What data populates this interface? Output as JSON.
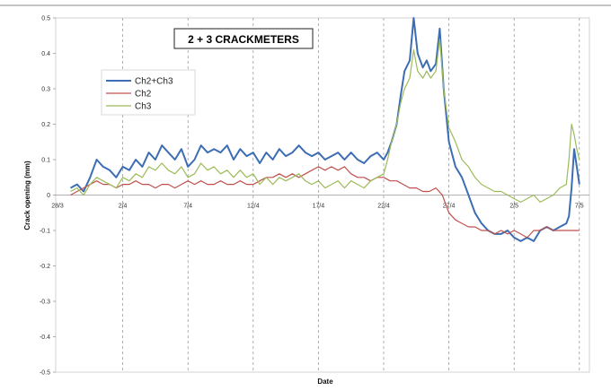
{
  "chart_data": {
    "type": "line",
    "title": "2 + 3 CRACKMETERS",
    "xlabel": "Date",
    "ylabel": "Crack opening (mm)",
    "ylim": [
      -0.5,
      0.5
    ],
    "yticks": [
      0.5,
      0.4,
      0.3,
      0.2,
      0.1,
      0,
      -0.1,
      -0.2,
      -0.3,
      -0.4,
      -0.5
    ],
    "xticks": [
      "28/3",
      "2/4",
      "7/4",
      "12/4",
      "17/4",
      "22/4",
      "27/4",
      "2/5",
      "7/5"
    ],
    "grid": "vertical-dashed",
    "legend_position": "top-left",
    "series": [
      {
        "name": "Ch2+Ch3",
        "color": "#3d6db3",
        "x": [
          1.0,
          1.5,
          2.0,
          2.5,
          3.0,
          3.5,
          4.0,
          4.5,
          5.0,
          5.5,
          6.0,
          6.5,
          7.0,
          7.5,
          8.0,
          8.5,
          9.0,
          9.5,
          10.0,
          10.5,
          11.0,
          11.5,
          12.0,
          12.5,
          13.0,
          13.5,
          14.0,
          14.5,
          15.0,
          15.5,
          16.0,
          16.5,
          17.0,
          17.5,
          18.0,
          18.5,
          19.0,
          19.5,
          20.0,
          20.5,
          21.0,
          21.5,
          22.0,
          22.5,
          23.0,
          23.5,
          24.0,
          24.5,
          25.0,
          25.3,
          25.6,
          26.0,
          26.3,
          26.6,
          27.0,
          27.3,
          27.6,
          28.0,
          28.3,
          28.6,
          29.0,
          29.3,
          29.6,
          30.0,
          30.5,
          31.0,
          31.5,
          32.0,
          32.5,
          33.0,
          33.5,
          34.0,
          34.5,
          35.0,
          35.5,
          36.0,
          36.5,
          37.0,
          37.5,
          38.0,
          38.5,
          39.0,
          39.2,
          39.4,
          39.6,
          39.8,
          40.0
        ],
        "y": [
          0.02,
          0.03,
          0.01,
          0.05,
          0.1,
          0.08,
          0.07,
          0.05,
          0.08,
          0.07,
          0.1,
          0.08,
          0.12,
          0.1,
          0.14,
          0.12,
          0.1,
          0.13,
          0.08,
          0.1,
          0.14,
          0.12,
          0.13,
          0.12,
          0.14,
          0.1,
          0.13,
          0.11,
          0.12,
          0.09,
          0.12,
          0.1,
          0.13,
          0.11,
          0.12,
          0.14,
          0.12,
          0.11,
          0.12,
          0.1,
          0.11,
          0.12,
          0.1,
          0.12,
          0.1,
          0.09,
          0.11,
          0.12,
          0.1,
          0.12,
          0.15,
          0.2,
          0.28,
          0.35,
          0.38,
          0.5,
          0.4,
          0.36,
          0.38,
          0.35,
          0.37,
          0.47,
          0.3,
          0.15,
          0.08,
          0.05,
          0.0,
          -0.05,
          -0.08,
          -0.1,
          -0.11,
          -0.11,
          -0.1,
          -0.12,
          -0.13,
          -0.12,
          -0.13,
          -0.1,
          -0.09,
          -0.1,
          -0.09,
          -0.08,
          -0.06,
          0.02,
          0.13,
          0.08,
          0.03
        ]
      },
      {
        "name": "Ch2",
        "color": "#c0504d",
        "x": [
          1.0,
          1.5,
          2.0,
          2.5,
          3.0,
          3.5,
          4.0,
          4.5,
          5.0,
          5.5,
          6.0,
          6.5,
          7.0,
          7.5,
          8.0,
          8.5,
          9.0,
          9.5,
          10.0,
          10.5,
          11.0,
          11.5,
          12.0,
          12.5,
          13.0,
          13.5,
          14.0,
          14.5,
          15.0,
          15.5,
          16.0,
          16.5,
          17.0,
          17.5,
          18.0,
          18.5,
          19.0,
          19.5,
          20.0,
          20.5,
          21.0,
          21.5,
          22.0,
          22.5,
          23.0,
          23.5,
          24.0,
          24.5,
          25.0,
          25.5,
          26.0,
          26.5,
          27.0,
          27.5,
          28.0,
          28.5,
          29.0,
          29.5,
          30.0,
          30.5,
          31.0,
          31.5,
          32.0,
          32.5,
          33.0,
          33.5,
          34.0,
          34.5,
          35.0,
          35.5,
          36.0,
          36.5,
          37.0,
          37.5,
          38.0,
          38.5,
          39.0,
          39.5,
          40.0
        ],
        "y": [
          0.0,
          0.01,
          0.02,
          0.03,
          0.04,
          0.03,
          0.03,
          0.02,
          0.03,
          0.03,
          0.04,
          0.03,
          0.03,
          0.02,
          0.03,
          0.03,
          0.02,
          0.03,
          0.04,
          0.03,
          0.04,
          0.03,
          0.03,
          0.04,
          0.03,
          0.03,
          0.04,
          0.03,
          0.03,
          0.04,
          0.05,
          0.05,
          0.06,
          0.05,
          0.06,
          0.05,
          0.06,
          0.07,
          0.08,
          0.07,
          0.08,
          0.07,
          0.08,
          0.06,
          0.05,
          0.05,
          0.04,
          0.05,
          0.05,
          0.04,
          0.04,
          0.03,
          0.02,
          0.02,
          0.01,
          0.01,
          0.02,
          0.0,
          -0.05,
          -0.07,
          -0.08,
          -0.09,
          -0.09,
          -0.1,
          -0.1,
          -0.11,
          -0.1,
          -0.11,
          -0.1,
          -0.11,
          -0.12,
          -0.1,
          -0.1,
          -0.09,
          -0.1,
          -0.1,
          -0.1,
          -0.1,
          -0.1
        ]
      },
      {
        "name": "Ch3",
        "color": "#9bbb59",
        "x": [
          1.0,
          1.5,
          2.0,
          2.5,
          3.0,
          3.5,
          4.0,
          4.5,
          5.0,
          5.5,
          6.0,
          6.5,
          7.0,
          7.5,
          8.0,
          8.5,
          9.0,
          9.5,
          10.0,
          10.5,
          11.0,
          11.5,
          12.0,
          12.5,
          13.0,
          13.5,
          14.0,
          14.5,
          15.0,
          15.5,
          16.0,
          16.5,
          17.0,
          17.5,
          18.0,
          18.5,
          19.0,
          19.5,
          20.0,
          20.5,
          21.0,
          21.5,
          22.0,
          22.5,
          23.0,
          23.5,
          24.0,
          24.5,
          25.0,
          25.3,
          25.6,
          26.0,
          26.3,
          26.6,
          27.0,
          27.3,
          27.6,
          28.0,
          28.3,
          28.6,
          29.0,
          29.3,
          29.6,
          30.0,
          30.5,
          31.0,
          31.5,
          32.0,
          32.5,
          33.0,
          33.5,
          34.0,
          34.5,
          35.0,
          35.5,
          36.0,
          36.5,
          37.0,
          37.5,
          38.0,
          38.5,
          39.0,
          39.2,
          39.4,
          39.6,
          39.8,
          40.0
        ],
        "y": [
          0.01,
          0.02,
          0.0,
          0.03,
          0.05,
          0.04,
          0.03,
          0.02,
          0.05,
          0.04,
          0.06,
          0.05,
          0.08,
          0.07,
          0.09,
          0.07,
          0.06,
          0.08,
          0.05,
          0.06,
          0.09,
          0.07,
          0.08,
          0.06,
          0.07,
          0.05,
          0.07,
          0.05,
          0.06,
          0.03,
          0.05,
          0.03,
          0.05,
          0.04,
          0.05,
          0.06,
          0.04,
          0.03,
          0.04,
          0.02,
          0.03,
          0.04,
          0.02,
          0.04,
          0.03,
          0.02,
          0.04,
          0.05,
          0.06,
          0.1,
          0.15,
          0.2,
          0.26,
          0.3,
          0.33,
          0.41,
          0.35,
          0.33,
          0.35,
          0.33,
          0.35,
          0.44,
          0.3,
          0.19,
          0.15,
          0.1,
          0.08,
          0.05,
          0.03,
          0.02,
          0.01,
          0.01,
          0.0,
          -0.01,
          -0.02,
          -0.01,
          0.0,
          -0.02,
          -0.01,
          0.0,
          0.02,
          0.03,
          0.1,
          0.2,
          0.17,
          0.13,
          0.1
        ]
      }
    ]
  }
}
